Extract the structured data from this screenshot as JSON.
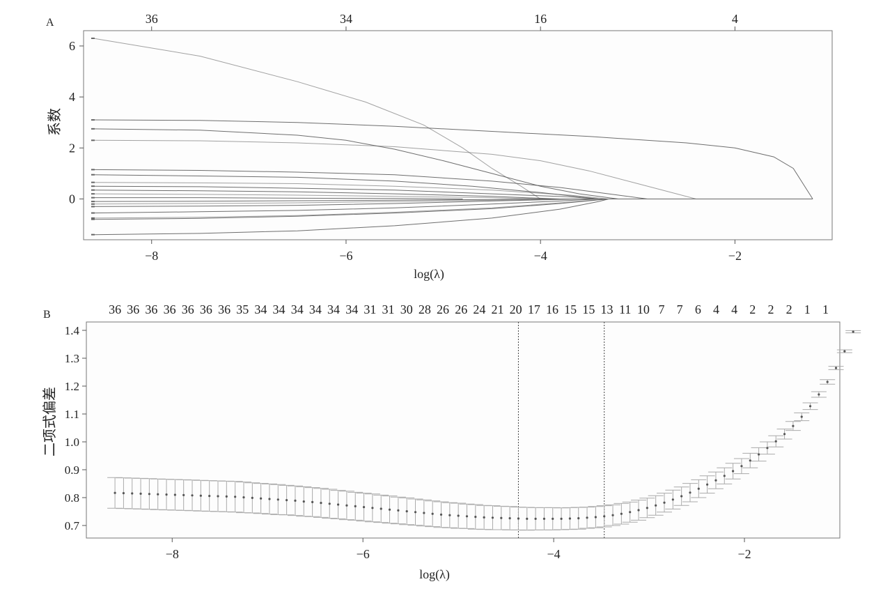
{
  "chart_data": [
    {
      "panel": "A",
      "type": "line",
      "xlabel": "log(λ)",
      "ylabel": "系数",
      "xlim": [
        -8.7,
        -1.0
      ],
      "ylim": [
        -1.6,
        6.6
      ],
      "x_ticks": [
        -8,
        -6,
        -4,
        -2
      ],
      "y_ticks": [
        0,
        2,
        4,
        6
      ],
      "top_axis": [
        {
          "x": -8,
          "label": "36"
        },
        {
          "x": -6,
          "label": "34"
        },
        {
          "x": -4,
          "label": "16"
        },
        {
          "x": -2,
          "label": "4"
        }
      ],
      "grid": false,
      "series_color": "#555555",
      "series": [
        {
          "x": [
            -8.6,
            -7.5,
            -6.5,
            -5.8,
            -5.2,
            -4.8,
            -4.5,
            -4.2,
            -4.0
          ],
          "values": [
            6.3,
            5.6,
            4.6,
            3.8,
            2.9,
            2.0,
            1.2,
            0.5,
            0.0
          ]
        },
        {
          "x": [
            -8.6,
            -7.5,
            -6.5,
            -5.5,
            -4.5,
            -3.5,
            -2.5,
            -2.0,
            -1.6,
            -1.4,
            -1.2
          ],
          "values": [
            3.1,
            3.08,
            3.0,
            2.85,
            2.65,
            2.45,
            2.2,
            2.0,
            1.65,
            1.2,
            0.0
          ]
        },
        {
          "x": [
            -8.6,
            -7.5,
            -6.5,
            -6.0,
            -5.5,
            -5.0,
            -4.5,
            -4.0,
            -3.6,
            -3.2
          ],
          "values": [
            2.75,
            2.7,
            2.5,
            2.3,
            1.95,
            1.5,
            1.0,
            0.5,
            0.2,
            0.0
          ]
        },
        {
          "x": [
            -8.6,
            -7.5,
            -6.5,
            -5.5,
            -4.5,
            -4.0,
            -3.5,
            -3.0,
            -2.6,
            -2.4
          ],
          "values": [
            2.3,
            2.28,
            2.2,
            2.05,
            1.75,
            1.5,
            1.1,
            0.6,
            0.2,
            0.0
          ]
        },
        {
          "x": [
            -8.6,
            -7.5,
            -6.5,
            -5.5,
            -4.5,
            -3.8,
            -3.3,
            -2.9
          ],
          "values": [
            1.15,
            1.12,
            1.05,
            0.95,
            0.7,
            0.45,
            0.2,
            0.0
          ]
        },
        {
          "x": [
            -8.6,
            -7.5,
            -6.5,
            -5.5,
            -4.7,
            -4.0,
            -3.4
          ],
          "values": [
            0.95,
            0.9,
            0.85,
            0.7,
            0.5,
            0.25,
            0.0
          ]
        },
        {
          "x": [
            -8.6,
            -7.5,
            -6.5,
            -5.5,
            -4.5,
            -3.7,
            -3.3
          ],
          "values": [
            0.65,
            0.63,
            0.6,
            0.5,
            0.35,
            0.15,
            0.0
          ]
        },
        {
          "x": [
            -8.6,
            -7.5,
            -6.5,
            -5.5,
            -4.5,
            -3.7,
            -3.4
          ],
          "values": [
            0.5,
            0.48,
            0.42,
            0.35,
            0.2,
            0.08,
            0.0
          ]
        },
        {
          "x": [
            -8.6,
            -7.5,
            -6.5,
            -5.5,
            -4.5,
            -3.8
          ],
          "values": [
            0.35,
            0.32,
            0.28,
            0.2,
            0.1,
            0.0
          ]
        },
        {
          "x": [
            -8.6,
            -7.5,
            -6.5,
            -5.5,
            -4.5,
            -4.0
          ],
          "values": [
            0.2,
            0.18,
            0.15,
            0.1,
            0.05,
            0.0
          ]
        },
        {
          "x": [
            -8.6,
            -7.5,
            -6.5,
            -5.5,
            -4.8
          ],
          "values": [
            0.05,
            0.05,
            0.03,
            0.02,
            0.0
          ]
        },
        {
          "x": [
            -8.6,
            -7.5,
            -6.5,
            -5.5,
            -4.5,
            -4.0
          ],
          "values": [
            -0.1,
            -0.09,
            -0.07,
            -0.05,
            -0.02,
            0.0
          ]
        },
        {
          "x": [
            -8.6,
            -7.5,
            -6.5,
            -5.5,
            -4.5,
            -3.8
          ],
          "values": [
            -0.2,
            -0.18,
            -0.15,
            -0.1,
            -0.05,
            0.0
          ]
        },
        {
          "x": [
            -8.6,
            -7.5,
            -6.5,
            -5.5,
            -4.5,
            -3.6
          ],
          "values": [
            -0.3,
            -0.28,
            -0.25,
            -0.18,
            -0.08,
            0.0
          ]
        },
        {
          "x": [
            -8.6,
            -7.5,
            -6.5,
            -5.5,
            -4.5,
            -3.8,
            -3.4
          ],
          "values": [
            -0.55,
            -0.5,
            -0.45,
            -0.35,
            -0.2,
            -0.08,
            0.0
          ]
        },
        {
          "x": [
            -8.6,
            -7.5,
            -6.5,
            -5.5,
            -4.5,
            -3.8,
            -3.3
          ],
          "values": [
            -0.75,
            -0.72,
            -0.65,
            -0.52,
            -0.35,
            -0.15,
            0.0
          ]
        },
        {
          "x": [
            -8.6,
            -7.5,
            -6.5,
            -5.5,
            -4.5,
            -3.8,
            -3.3
          ],
          "values": [
            -0.8,
            -0.76,
            -0.68,
            -0.55,
            -0.38,
            -0.18,
            0.0
          ]
        },
        {
          "x": [
            -8.6,
            -7.5,
            -6.5,
            -5.5,
            -4.5,
            -3.8,
            -3.4,
            -3.3
          ],
          "values": [
            -1.4,
            -1.35,
            -1.25,
            -1.05,
            -0.75,
            -0.4,
            -0.1,
            0.0
          ]
        }
      ]
    },
    {
      "panel": "B",
      "type": "scatter",
      "xlabel": "log(λ)",
      "ylabel": "二项式偏差",
      "xlim": [
        -8.9,
        -1.0
      ],
      "ylim": [
        0.655,
        1.43
      ],
      "x_ticks": [
        -8,
        -6,
        -4,
        -2
      ],
      "y_ticks": [
        0.7,
        0.8,
        0.9,
        1.0,
        1.1,
        1.2,
        1.3,
        1.4
      ],
      "top_axis_labels": [
        "36",
        "36",
        "36",
        "36",
        "36",
        "36",
        "36",
        "35",
        "34",
        "34",
        "34",
        "34",
        "34",
        "34",
        "31",
        "31",
        "30",
        "28",
        "26",
        "26",
        "24",
        "21",
        "20",
        "17",
        "16",
        "15",
        "15",
        "13",
        "11",
        "10",
        "7",
        "7",
        "6",
        "4",
        "4",
        "2",
        "2",
        "2",
        "1",
        "1"
      ],
      "top_axis_range": [
        -8.6,
        -1.15
      ],
      "vlines": [
        -4.37,
        -3.47
      ],
      "grid": false,
      "point_color": "#555555",
      "errorbar_color": "#aaaaaa",
      "x_start": -8.6,
      "x_step": 0.09,
      "values": [
        0.817,
        0.816,
        0.815,
        0.814,
        0.813,
        0.812,
        0.811,
        0.81,
        0.809,
        0.808,
        0.807,
        0.806,
        0.805,
        0.804,
        0.803,
        0.801,
        0.799,
        0.797,
        0.795,
        0.793,
        0.791,
        0.789,
        0.786,
        0.784,
        0.781,
        0.778,
        0.775,
        0.772,
        0.769,
        0.766,
        0.763,
        0.76,
        0.757,
        0.754,
        0.751,
        0.748,
        0.745,
        0.742,
        0.739,
        0.737,
        0.735,
        0.733,
        0.731,
        0.729,
        0.728,
        0.727,
        0.726,
        0.725,
        0.724,
        0.724,
        0.724,
        0.724,
        0.724,
        0.725,
        0.726,
        0.728,
        0.73,
        0.733,
        0.737,
        0.742,
        0.748,
        0.755,
        0.763,
        0.772,
        0.782,
        0.793,
        0.805,
        0.818,
        0.832,
        0.847,
        0.862,
        0.878,
        0.895,
        0.913,
        0.933,
        0.955,
        0.978,
        1.002,
        1.028,
        1.057,
        1.09,
        1.128,
        1.17,
        1.215,
        1.265,
        1.325,
        1.395
      ],
      "errors": [
        0.055,
        0.055,
        0.055,
        0.055,
        0.055,
        0.055,
        0.055,
        0.055,
        0.055,
        0.055,
        0.055,
        0.055,
        0.055,
        0.055,
        0.055,
        0.055,
        0.054,
        0.054,
        0.054,
        0.054,
        0.053,
        0.053,
        0.053,
        0.052,
        0.052,
        0.052,
        0.051,
        0.051,
        0.05,
        0.05,
        0.05,
        0.049,
        0.049,
        0.048,
        0.048,
        0.047,
        0.047,
        0.046,
        0.046,
        0.045,
        0.045,
        0.044,
        0.044,
        0.043,
        0.043,
        0.042,
        0.042,
        0.041,
        0.041,
        0.04,
        0.04,
        0.04,
        0.039,
        0.039,
        0.039,
        0.038,
        0.038,
        0.038,
        0.037,
        0.037,
        0.036,
        0.036,
        0.035,
        0.035,
        0.034,
        0.034,
        0.033,
        0.033,
        0.032,
        0.031,
        0.03,
        0.029,
        0.028,
        0.027,
        0.026,
        0.024,
        0.022,
        0.02,
        0.018,
        0.016,
        0.014,
        0.012,
        0.01,
        0.008,
        0.006,
        0.005,
        0.004
      ]
    }
  ],
  "panels": {
    "a_label": "A",
    "b_label": "B"
  }
}
